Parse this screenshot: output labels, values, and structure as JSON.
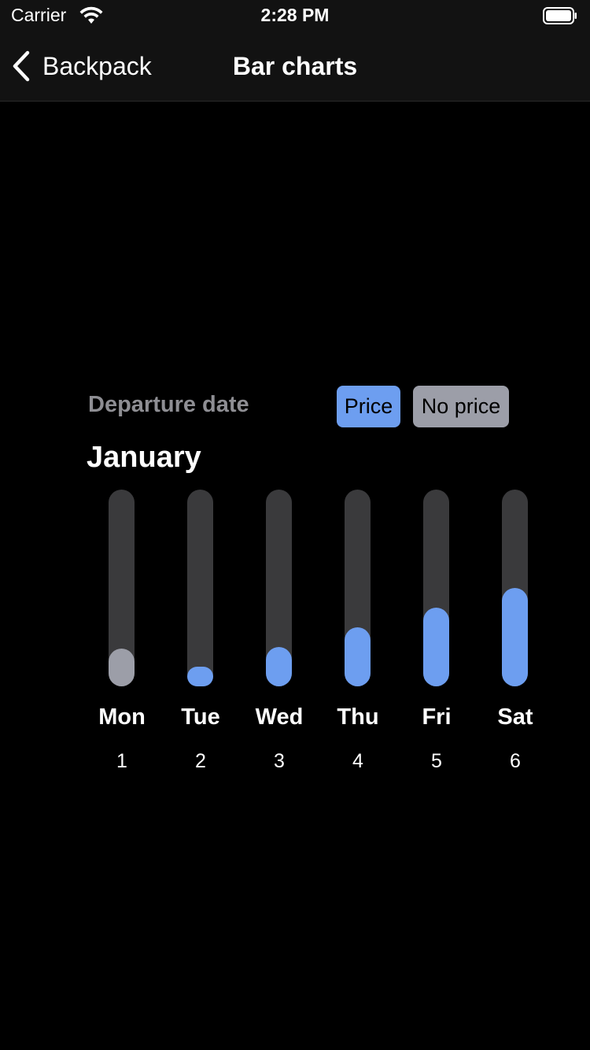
{
  "status_bar": {
    "carrier": "Carrier",
    "time": "2:28 PM",
    "icons": [
      "wifi-icon",
      "battery-icon"
    ]
  },
  "nav": {
    "back_label": "Backpack",
    "title": "Bar charts",
    "back_icon": "chevron-left-icon"
  },
  "chart_header": {
    "label": "Departure date",
    "legend": [
      {
        "label": "Price",
        "color": "#6d9ef0"
      },
      {
        "label": "No price",
        "color": "#9c9ea8"
      }
    ],
    "month": "January"
  },
  "colors": {
    "accent": "#6d9ef0",
    "no_price": "#9c9ea8",
    "track": "#3a3a3c"
  },
  "chart_data": {
    "type": "bar",
    "title": "January",
    "categories": [
      "Mon",
      "Tue",
      "Wed",
      "Thu",
      "Fri",
      "Sat"
    ],
    "dates": [
      "1",
      "2",
      "3",
      "4",
      "5",
      "6"
    ],
    "values": [
      0.19,
      0.1,
      0.2,
      0.3,
      0.4,
      0.5
    ],
    "has_price": [
      false,
      true,
      true,
      true,
      true,
      true
    ],
    "ylim": [
      0,
      1
    ]
  }
}
